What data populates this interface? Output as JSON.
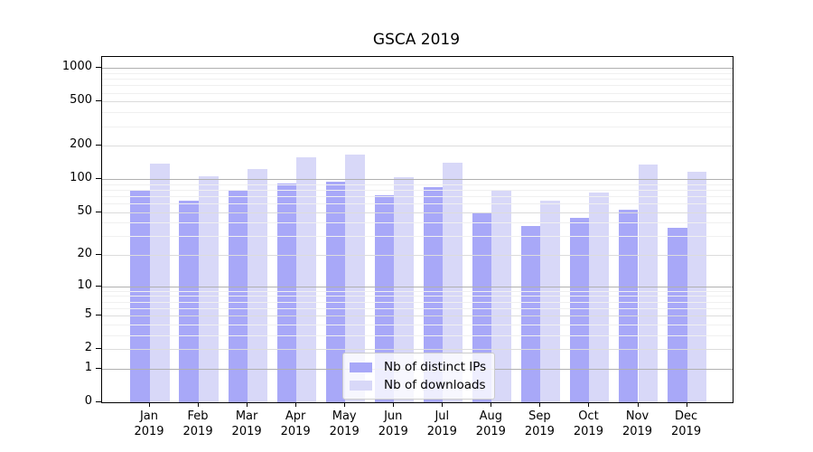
{
  "title": "GSCA 2019",
  "chart_data": {
    "type": "bar",
    "title": "GSCA 2019",
    "categories": [
      "Jan 2019",
      "Feb 2019",
      "Mar 2019",
      "Apr 2019",
      "May 2019",
      "Jun 2019",
      "Jul 2019",
      "Aug 2019",
      "Sep 2019",
      "Oct 2019",
      "Nov 2019",
      "Dec 2019"
    ],
    "series": [
      {
        "name": "Nb of distinct IPs",
        "color": "#a8a8f8",
        "values": [
          80,
          63,
          78,
          91,
          95,
          71,
          85,
          50,
          37,
          44,
          53,
          36
        ]
      },
      {
        "name": "Nb of downloads",
        "color": "#d8d8f8",
        "values": [
          139,
          106,
          123,
          158,
          166,
          104,
          140,
          78,
          64,
          76,
          135,
          116
        ]
      }
    ],
    "yscale": "log(1+x)",
    "y_ticks": [
      0,
      1,
      2,
      5,
      10,
      20,
      50,
      100,
      200,
      500,
      1000
    ],
    "ylim": [
      0,
      1250
    ],
    "xlabel": "",
    "ylabel": "",
    "grid": "both",
    "legend_position": "lower center"
  },
  "colors": {
    "grid_decade": "#b0b0b0",
    "grid_mid": "#dcdcdc",
    "grid_minor": "#f0f0f0",
    "spine": "#000000",
    "background": "#ffffff"
  }
}
